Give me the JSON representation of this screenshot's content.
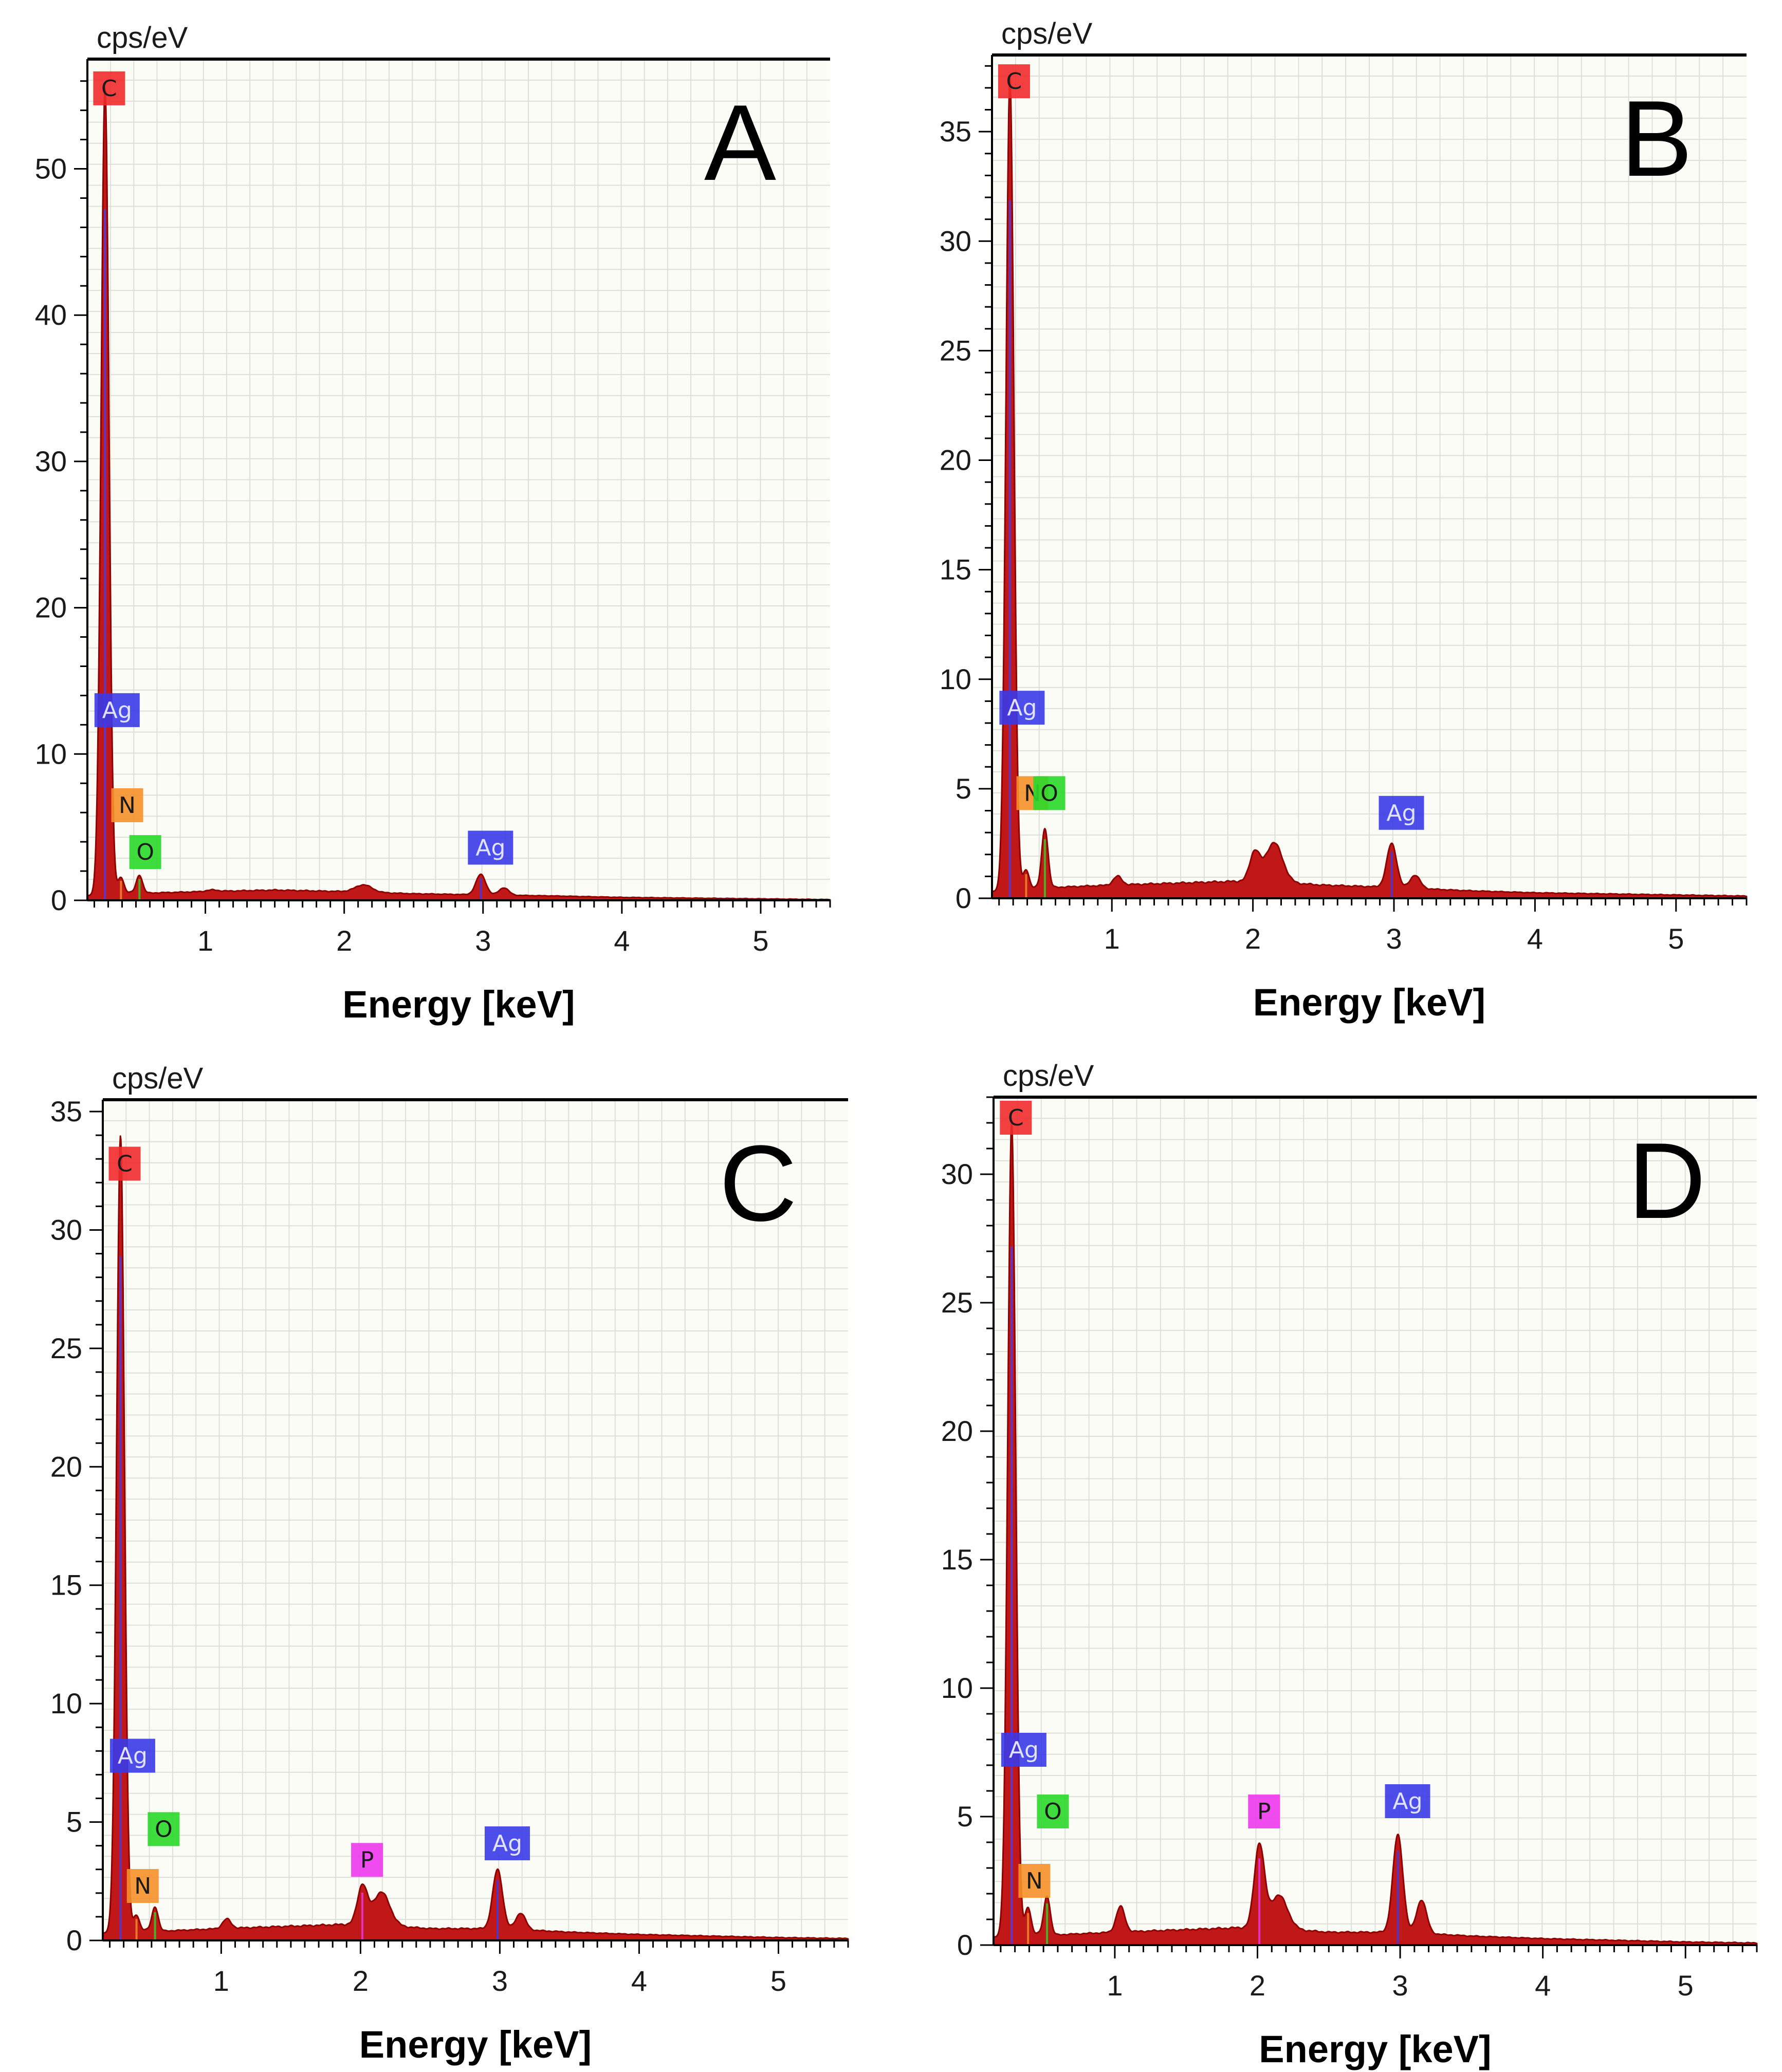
{
  "colors": {
    "spectrum_fill": "#c01818",
    "spectrum_edge": "#8f0000",
    "plot_bg": "#fbfcf6",
    "grid": "#dde0d8",
    "C": "#ef2b2b",
    "Ag": "#3a3ae8",
    "N": "#f5912b",
    "O": "#2ad82a",
    "P": "#ee37ee"
  },
  "chart_data": [
    {
      "type": "area",
      "panel_label": "A",
      "y_unit": "cps/eV",
      "xlabel": "Energy [keV]",
      "xlim": [
        0.15,
        5.5
      ],
      "ylim": [
        0,
        57.5
      ],
      "x_ticks": [
        1,
        2,
        3,
        4,
        5
      ],
      "y_ticks": [
        0,
        10,
        20,
        30,
        40,
        50
      ],
      "background": [
        [
          0.15,
          0.3
        ],
        [
          0.3,
          0.6
        ],
        [
          0.6,
          0.5
        ],
        [
          1.0,
          0.6
        ],
        [
          1.5,
          0.7
        ],
        [
          2.0,
          0.6
        ],
        [
          2.5,
          0.45
        ],
        [
          3.5,
          0.3
        ],
        [
          4.0,
          0.2
        ],
        [
          5.0,
          0.1
        ],
        [
          5.5,
          0.05
        ]
      ],
      "peaks": [
        {
          "x": 0.277,
          "height": 55.0,
          "width": 0.028
        },
        {
          "x": 0.392,
          "height": 1.0,
          "width": 0.02
        },
        {
          "x": 0.525,
          "height": 1.2,
          "width": 0.022
        },
        {
          "x": 1.05,
          "height": 0.1,
          "width": 0.04
        },
        {
          "x": 2.14,
          "height": 0.5,
          "width": 0.06
        },
        {
          "x": 2.984,
          "height": 1.4,
          "width": 0.035
        },
        {
          "x": 3.15,
          "height": 0.5,
          "width": 0.035
        }
      ],
      "peak_labels": [
        {
          "element": "C",
          "text": "C",
          "x": 0.27,
          "y": 55.5
        },
        {
          "element": "Ag",
          "text": "Ag",
          "x": 0.29,
          "y": 13.0
        },
        {
          "element": "N",
          "text": "N",
          "x": 0.4,
          "y": 6.5
        },
        {
          "element": "O",
          "text": "O",
          "x": 0.53,
          "y": 3.3
        },
        {
          "element": "Ag",
          "text": "Ag",
          "x": 2.98,
          "y": 3.6
        }
      ]
    },
    {
      "type": "area",
      "panel_label": "B",
      "y_unit": "cps/eV",
      "xlabel": "Energy [keV]",
      "xlim": [
        0.15,
        5.5
      ],
      "ylim": [
        0,
        38.5
      ],
      "x_ticks": [
        1,
        2,
        3,
        4,
        5
      ],
      "y_ticks": [
        0,
        5,
        10,
        15,
        20,
        25,
        30,
        35
      ],
      "background": [
        [
          0.15,
          0.3
        ],
        [
          0.3,
          0.5
        ],
        [
          0.6,
          0.5
        ],
        [
          1.0,
          0.6
        ],
        [
          1.5,
          0.7
        ],
        [
          2.0,
          0.8
        ],
        [
          2.5,
          0.6
        ],
        [
          3.0,
          0.5
        ],
        [
          3.5,
          0.35
        ],
        [
          4.0,
          0.25
        ],
        [
          5.0,
          0.15
        ],
        [
          5.5,
          0.1
        ]
      ],
      "peaks": [
        {
          "x": 0.277,
          "height": 37.0,
          "width": 0.028
        },
        {
          "x": 0.392,
          "height": 0.8,
          "width": 0.02
        },
        {
          "x": 0.525,
          "height": 2.7,
          "width": 0.022
        },
        {
          "x": 1.04,
          "height": 0.4,
          "width": 0.03
        },
        {
          "x": 2.013,
          "height": 1.3,
          "width": 0.035
        },
        {
          "x": 2.15,
          "height": 1.8,
          "width": 0.06
        },
        {
          "x": 2.984,
          "height": 2.0,
          "width": 0.035
        },
        {
          "x": 3.15,
          "height": 0.6,
          "width": 0.035
        }
      ],
      "peak_labels": [
        {
          "element": "C",
          "text": "C",
          "x": 0.27,
          "y": 37.3
        },
        {
          "element": "Ag",
          "text": "Ag",
          "x": 0.29,
          "y": 8.7
        },
        {
          "element": "N",
          "text": "N",
          "x": 0.4,
          "y": 4.8
        },
        {
          "element": "O",
          "text": "O",
          "x": 0.52,
          "y": 4.8
        },
        {
          "element": "Ag",
          "text": "Ag",
          "x": 2.98,
          "y": 3.9
        }
      ]
    },
    {
      "type": "area",
      "panel_label": "C",
      "y_unit": "cps/eV",
      "xlabel": "Energy [keV]",
      "xlim": [
        0.15,
        5.5
      ],
      "ylim": [
        0,
        35.5
      ],
      "x_ticks": [
        1,
        2,
        3,
        4,
        5
      ],
      "y_ticks": [
        0,
        5,
        10,
        15,
        20,
        25,
        30,
        35
      ],
      "background": [
        [
          0.15,
          0.3
        ],
        [
          0.3,
          0.5
        ],
        [
          0.6,
          0.4
        ],
        [
          1.0,
          0.5
        ],
        [
          1.5,
          0.6
        ],
        [
          2.0,
          0.7
        ],
        [
          2.5,
          0.5
        ],
        [
          3.0,
          0.5
        ],
        [
          3.5,
          0.35
        ],
        [
          4.0,
          0.25
        ],
        [
          5.0,
          0.12
        ],
        [
          5.5,
          0.08
        ]
      ],
      "peaks": [
        {
          "x": 0.277,
          "height": 33.5,
          "width": 0.028
        },
        {
          "x": 0.392,
          "height": 0.6,
          "width": 0.02
        },
        {
          "x": 0.525,
          "height": 1.0,
          "width": 0.022
        },
        {
          "x": 1.04,
          "height": 0.4,
          "width": 0.03
        },
        {
          "x": 2.013,
          "height": 1.6,
          "width": 0.035
        },
        {
          "x": 2.15,
          "height": 1.4,
          "width": 0.06
        },
        {
          "x": 2.984,
          "height": 2.5,
          "width": 0.035
        },
        {
          "x": 3.15,
          "height": 0.7,
          "width": 0.035
        }
      ],
      "peak_labels": [
        {
          "element": "C",
          "text": "C",
          "x": 0.27,
          "y": 32.8
        },
        {
          "element": "Ag",
          "text": "Ag",
          "x": 0.29,
          "y": 7.8
        },
        {
          "element": "O",
          "text": "O",
          "x": 0.55,
          "y": 4.7
        },
        {
          "element": "N",
          "text": "N",
          "x": 0.4,
          "y": 2.3
        },
        {
          "element": "P",
          "text": "P",
          "x": 2.01,
          "y": 3.4
        },
        {
          "element": "Ag",
          "text": "Ag",
          "x": 2.98,
          "y": 4.1
        }
      ]
    },
    {
      "type": "area",
      "panel_label": "D",
      "y_unit": "cps/eV",
      "xlabel": "Energy [keV]",
      "xlim": [
        0.15,
        5.5
      ],
      "ylim": [
        0,
        33.0
      ],
      "x_ticks": [
        1,
        2,
        3,
        4,
        5
      ],
      "y_ticks": [
        0,
        5,
        10,
        15,
        20,
        25,
        30
      ],
      "background": [
        [
          0.15,
          0.3
        ],
        [
          0.3,
          0.5
        ],
        [
          0.6,
          0.4
        ],
        [
          1.0,
          0.5
        ],
        [
          1.5,
          0.6
        ],
        [
          2.0,
          0.7
        ],
        [
          2.5,
          0.5
        ],
        [
          3.0,
          0.5
        ],
        [
          3.5,
          0.35
        ],
        [
          4.0,
          0.25
        ],
        [
          5.0,
          0.12
        ],
        [
          5.5,
          0.08
        ]
      ],
      "peaks": [
        {
          "x": 0.277,
          "height": 31.5,
          "width": 0.028
        },
        {
          "x": 0.392,
          "height": 1.0,
          "width": 0.02
        },
        {
          "x": 0.525,
          "height": 1.5,
          "width": 0.022
        },
        {
          "x": 1.04,
          "height": 1.0,
          "width": 0.03
        },
        {
          "x": 2.013,
          "height": 3.2,
          "width": 0.035
        },
        {
          "x": 2.15,
          "height": 1.3,
          "width": 0.06
        },
        {
          "x": 2.984,
          "height": 3.8,
          "width": 0.035
        },
        {
          "x": 3.15,
          "height": 1.3,
          "width": 0.035
        }
      ],
      "peak_labels": [
        {
          "element": "C",
          "text": "C",
          "x": 0.27,
          "y": 32.2
        },
        {
          "element": "Ag",
          "text": "Ag",
          "x": 0.29,
          "y": 7.6
        },
        {
          "element": "O",
          "text": "O",
          "x": 0.53,
          "y": 5.2
        },
        {
          "element": "N",
          "text": "N",
          "x": 0.4,
          "y": 2.5
        },
        {
          "element": "P",
          "text": "P",
          "x": 2.01,
          "y": 5.2
        },
        {
          "element": "Ag",
          "text": "Ag",
          "x": 2.98,
          "y": 5.6
        }
      ]
    }
  ]
}
